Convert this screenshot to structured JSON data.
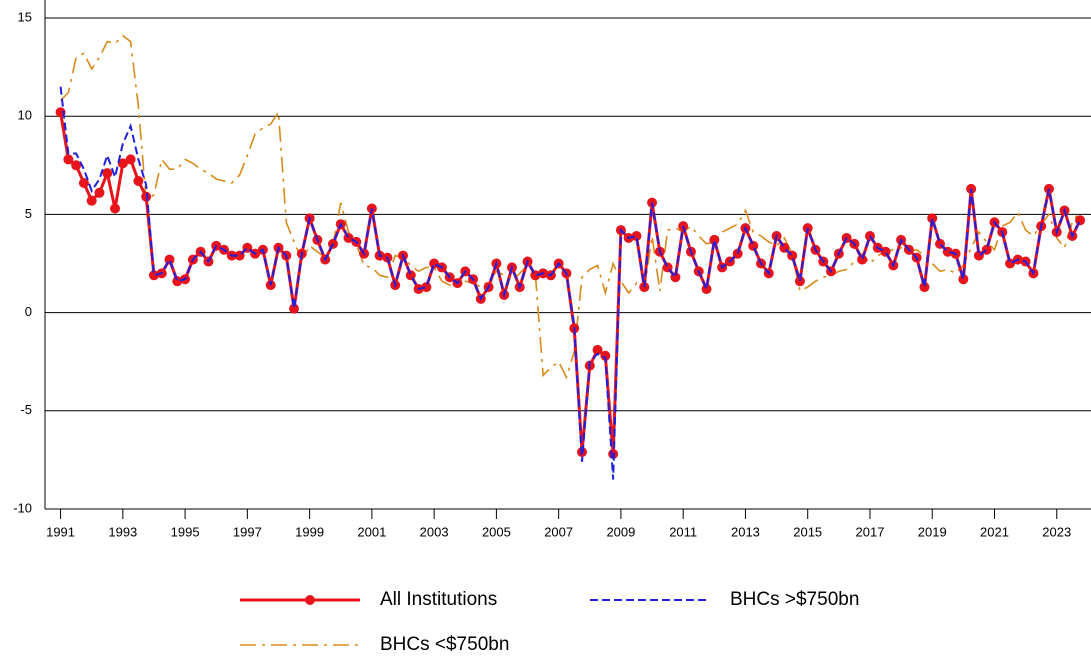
{
  "chart_data": {
    "type": "line",
    "x": [
      1991,
      1991.25,
      1991.5,
      1991.75,
      1992,
      1992.25,
      1992.5,
      1992.75,
      1993,
      1993.25,
      1993.5,
      1993.75,
      1994,
      1994.25,
      1994.5,
      1994.75,
      1995,
      1995.25,
      1995.5,
      1995.75,
      1996,
      1996.25,
      1996.5,
      1996.75,
      1997,
      1997.25,
      1997.5,
      1997.75,
      1998,
      1998.25,
      1998.5,
      1998.75,
      1999,
      1999.25,
      1999.5,
      1999.75,
      2000,
      2000.25,
      2000.5,
      2000.75,
      2001,
      2001.25,
      2001.5,
      2001.75,
      2002,
      2002.25,
      2002.5,
      2002.75,
      2003,
      2003.25,
      2003.5,
      2003.75,
      2004,
      2004.25,
      2004.5,
      2004.75,
      2005,
      2005.25,
      2005.5,
      2005.75,
      2006,
      2006.25,
      2006.5,
      2006.75,
      2007,
      2007.25,
      2007.5,
      2007.75,
      2008,
      2008.25,
      2008.5,
      2008.75,
      2009,
      2009.25,
      2009.5,
      2009.75,
      2010,
      2010.25,
      2010.5,
      2010.75,
      2011,
      2011.25,
      2011.5,
      2011.75,
      2012,
      2012.25,
      2012.5,
      2012.75,
      2013,
      2013.25,
      2013.5,
      2013.75,
      2014,
      2014.25,
      2014.5,
      2014.75,
      2015,
      2015.25,
      2015.5,
      2015.75,
      2016,
      2016.25,
      2016.5,
      2016.75,
      2017,
      2017.25,
      2017.5,
      2017.75,
      2018,
      2018.25,
      2018.5,
      2018.75,
      2019,
      2019.25,
      2019.5,
      2019.75,
      2020,
      2020.25,
      2020.5,
      2020.75,
      2021,
      2021.25,
      2021.5,
      2021.75,
      2022,
      2022.25,
      2022.5,
      2022.75,
      2023,
      2023.25,
      2023.5,
      2023.75
    ],
    "series": [
      {
        "name": "BHCs <$750bn",
        "color": "#d98a1c",
        "style": "dash-dot",
        "marker": false,
        "values": [
          10.8,
          11.2,
          13.0,
          13.2,
          12.4,
          13.0,
          13.8,
          13.7,
          14.1,
          13.8,
          10.5,
          5.7,
          6.0,
          7.8,
          7.3,
          7.3,
          7.8,
          7.6,
          7.3,
          7.1,
          6.8,
          6.7,
          6.6,
          7.0,
          8.0,
          9.1,
          9.4,
          9.6,
          10.2,
          4.6,
          3.6,
          2.7,
          3.4,
          3.1,
          2.8,
          3.4,
          5.6,
          4.1,
          3.5,
          2.4,
          2.3,
          1.9,
          1.8,
          2.9,
          2.8,
          2.4,
          2.1,
          2.3,
          2.3,
          1.6,
          1.4,
          1.6,
          1.6,
          1.5,
          1.3,
          1.6,
          2.1,
          1.9,
          1.6,
          2.0,
          2.4,
          2.0,
          -3.2,
          -2.8,
          -2.5,
          -3.3,
          -2.0,
          1.8,
          2.2,
          2.4,
          1.0,
          2.5,
          1.6,
          1.0,
          1.5,
          1.1,
          3.9,
          1.1,
          4.2,
          4.3,
          4.1,
          4.4,
          3.9,
          3.5,
          3.6,
          4.1,
          4.3,
          4.5,
          5.2,
          4.1,
          3.9,
          3.6,
          3.4,
          3.8,
          3.0,
          1.1,
          1.3,
          1.6,
          1.8,
          1.9,
          2.1,
          2.2,
          2.6,
          3.0,
          2.5,
          2.9,
          3.1,
          3.2,
          3.3,
          3.1,
          3.2,
          2.9,
          2.5,
          2.1,
          2.2,
          2.0,
          2.4,
          3.3,
          4.1,
          3.6,
          3.2,
          4.4,
          4.6,
          5.1,
          4.2,
          3.9,
          4.5,
          5.0,
          3.8,
          3.3,
          4.6,
          5.2
        ]
      },
      {
        "name": "All Institutions",
        "color": "#e8141b",
        "style": "solid",
        "marker": true,
        "values": [
          10.2,
          7.8,
          7.5,
          6.6,
          5.7,
          6.1,
          7.1,
          5.3,
          7.6,
          7.8,
          6.7,
          5.9,
          1.9,
          2.0,
          2.7,
          1.6,
          1.7,
          2.7,
          3.1,
          2.6,
          3.4,
          3.2,
          2.9,
          2.9,
          3.3,
          3.0,
          3.2,
          1.4,
          3.3,
          2.9,
          0.2,
          3.0,
          4.8,
          3.7,
          2.7,
          3.5,
          4.5,
          3.8,
          3.6,
          3.0,
          5.3,
          2.9,
          2.8,
          1.4,
          2.9,
          1.9,
          1.2,
          1.3,
          2.5,
          2.3,
          1.8,
          1.5,
          2.1,
          1.7,
          0.7,
          1.3,
          2.5,
          0.9,
          2.3,
          1.3,
          2.6,
          1.9,
          2.0,
          1.9,
          2.5,
          2.0,
          -0.8,
          -7.1,
          -2.7,
          -1.9,
          -2.2,
          -7.2,
          4.2,
          3.8,
          3.9,
          1.3,
          5.6,
          3.1,
          2.3,
          1.8,
          4.4,
          3.1,
          2.1,
          1.2,
          3.7,
          2.3,
          2.6,
          3.0,
          4.3,
          3.4,
          2.5,
          2.0,
          3.9,
          3.3,
          2.9,
          1.6,
          4.3,
          3.2,
          2.6,
          2.1,
          3.0,
          3.8,
          3.5,
          2.7,
          3.9,
          3.3,
          3.1,
          2.4,
          3.7,
          3.2,
          2.8,
          1.3,
          4.8,
          3.5,
          3.1,
          3.0,
          1.7,
          6.3,
          2.9,
          3.2,
          4.6,
          4.1,
          2.5,
          2.7,
          2.6,
          2.0,
          4.4,
          6.3,
          4.1,
          5.2,
          3.9,
          4.7
        ]
      },
      {
        "name": "BHCs >$750bn",
        "color": "#1f1fe0",
        "style": "dashed",
        "marker": false,
        "values": [
          11.5,
          8.1,
          8.1,
          7.3,
          6.2,
          6.8,
          8.0,
          6.9,
          8.6,
          9.5,
          7.8,
          6.5,
          1.9,
          2.0,
          2.7,
          1.6,
          1.7,
          2.7,
          3.1,
          2.6,
          3.4,
          3.2,
          2.9,
          2.9,
          3.3,
          3.0,
          3.2,
          1.4,
          3.3,
          2.9,
          0.2,
          3.0,
          4.8,
          3.7,
          2.7,
          3.5,
          4.5,
          3.8,
          3.6,
          3.0,
          5.3,
          2.9,
          2.8,
          1.4,
          2.9,
          1.9,
          1.2,
          1.3,
          2.5,
          2.3,
          1.8,
          1.5,
          2.1,
          1.7,
          0.7,
          1.3,
          2.5,
          0.9,
          2.3,
          1.3,
          2.6,
          1.9,
          2.0,
          1.9,
          2.5,
          2.0,
          -0.7,
          -7.6,
          -2.5,
          -2.1,
          -2.3,
          -8.5,
          4.2,
          3.8,
          3.9,
          1.3,
          5.6,
          3.1,
          2.3,
          1.8,
          4.4,
          3.1,
          2.1,
          1.2,
          3.7,
          2.3,
          2.6,
          3.0,
          4.3,
          3.4,
          2.5,
          2.0,
          3.9,
          3.3,
          2.9,
          1.6,
          4.3,
          3.2,
          2.6,
          2.1,
          3.0,
          3.8,
          3.5,
          2.7,
          3.9,
          3.3,
          3.1,
          2.4,
          3.7,
          3.2,
          2.8,
          1.3,
          4.8,
          3.5,
          3.1,
          3.0,
          1.7,
          6.3,
          2.9,
          3.2,
          4.6,
          4.1,
          2.5,
          2.7,
          2.6,
          2.0,
          4.4,
          6.3,
          4.1,
          5.2,
          3.9,
          4.7
        ]
      }
    ],
    "xlim": [
      1990.5,
      2024.1
    ],
    "xticks": [
      1991,
      1993,
      1995,
      1997,
      1999,
      2001,
      2003,
      2005,
      2007,
      2009,
      2011,
      2013,
      2015,
      2017,
      2019,
      2021,
      2023
    ],
    "ylim": [
      -10,
      15
    ],
    "yticks": [
      -10,
      -5,
      0,
      5,
      10,
      15
    ],
    "grid": true
  }
}
